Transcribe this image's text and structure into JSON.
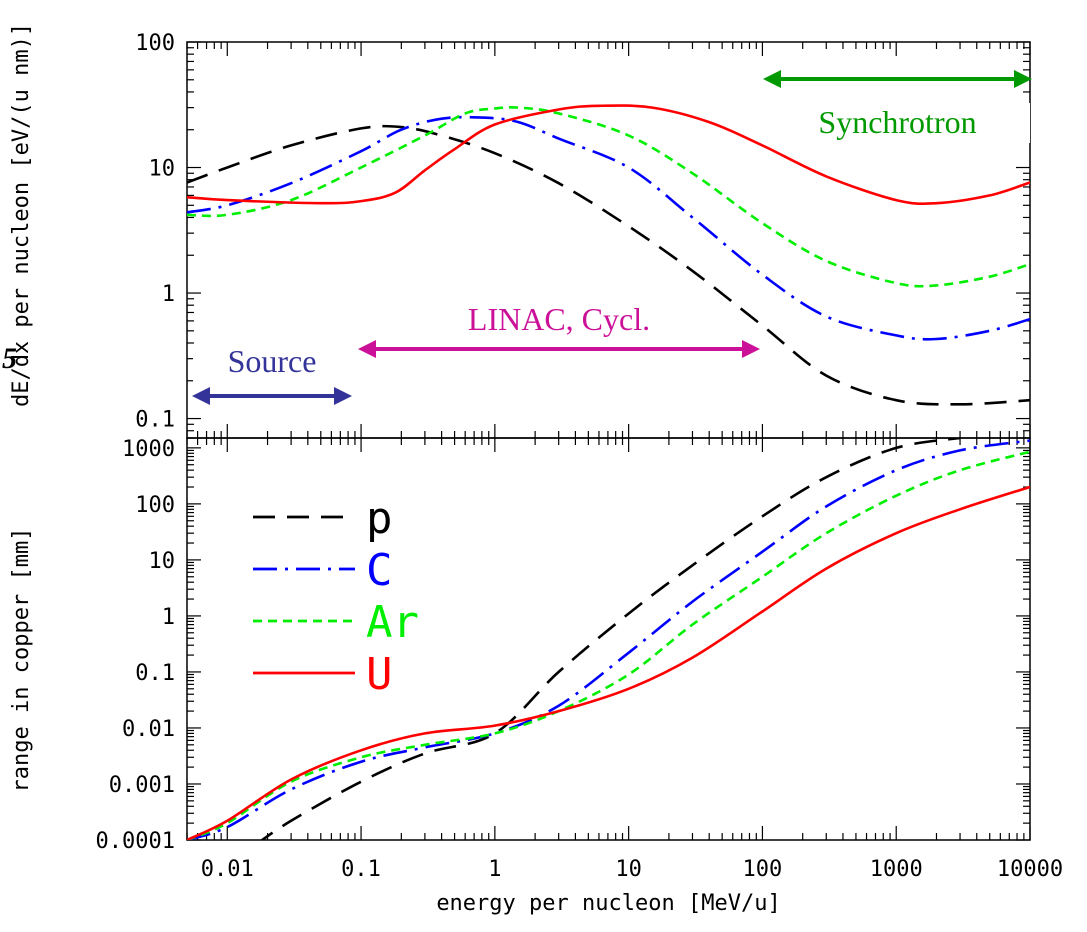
{
  "page": {
    "left_fragment": "5"
  },
  "chart_data": [
    {
      "type": "line",
      "id": "top",
      "xlabel": "",
      "ylabel": "dE/dx per nucleon [eV/(u nm)]",
      "xscale": "log",
      "yscale": "log",
      "xlim": [
        0.005,
        10000
      ],
      "ylim": [
        0.07,
        100
      ],
      "yticks": [
        {
          "v": 0.1,
          "label": "0.1"
        },
        {
          "v": 1,
          "label": "1"
        },
        {
          "v": 10,
          "label": "10"
        },
        {
          "v": 100,
          "label": "100"
        }
      ],
      "series": [
        {
          "name": "p",
          "color": "#000000",
          "dash": "22,12",
          "points": [
            [
              0.005,
              7.6
            ],
            [
              0.01,
              10
            ],
            [
              0.03,
              15
            ],
            [
              0.1,
              20.5
            ],
            [
              0.2,
              21
            ],
            [
              0.4,
              18
            ],
            [
              1,
              13
            ],
            [
              3,
              7.5
            ],
            [
              10,
              3.4
            ],
            [
              30,
              1.5
            ],
            [
              100,
              0.55
            ],
            [
              300,
              0.22
            ],
            [
              1000,
              0.14
            ],
            [
              3000,
              0.13
            ],
            [
              10000,
              0.14
            ]
          ]
        },
        {
          "name": "C",
          "color": "#0000ff",
          "dash": "24,8,3,8",
          "points": [
            [
              0.005,
              4.4
            ],
            [
              0.01,
              5
            ],
            [
              0.03,
              7.5
            ],
            [
              0.1,
              13.5
            ],
            [
              0.2,
              20
            ],
            [
              0.4,
              24.5
            ],
            [
              0.8,
              25
            ],
            [
              1.5,
              23
            ],
            [
              3,
              17
            ],
            [
              10,
              10
            ],
            [
              30,
              4
            ],
            [
              100,
              1.4
            ],
            [
              300,
              0.65
            ],
            [
              1000,
              0.46
            ],
            [
              2000,
              0.43
            ],
            [
              5000,
              0.5
            ],
            [
              10000,
              0.62
            ]
          ]
        },
        {
          "name": "Ar",
          "color": "#00ee00",
          "dash": "9,6",
          "points": [
            [
              0.005,
              4.2
            ],
            [
              0.01,
              4.2
            ],
            [
              0.03,
              5.5
            ],
            [
              0.1,
              10
            ],
            [
              0.3,
              18
            ],
            [
              0.6,
              27
            ],
            [
              1,
              29.5
            ],
            [
              1.5,
              30
            ],
            [
              3,
              27
            ],
            [
              10,
              18
            ],
            [
              30,
              9
            ],
            [
              100,
              3.6
            ],
            [
              300,
              1.8
            ],
            [
              1000,
              1.2
            ],
            [
              2000,
              1.15
            ],
            [
              5000,
              1.35
            ],
            [
              10000,
              1.7
            ]
          ]
        },
        {
          "name": "U",
          "color": "#ff0000",
          "dash": "",
          "points": [
            [
              0.005,
              5.8
            ],
            [
              0.01,
              5.5
            ],
            [
              0.05,
              5.2
            ],
            [
              0.1,
              5.4
            ],
            [
              0.18,
              6.3
            ],
            [
              0.3,
              9.5
            ],
            [
              0.5,
              14
            ],
            [
              1,
              22
            ],
            [
              3,
              29
            ],
            [
              6,
              31
            ],
            [
              15,
              30
            ],
            [
              40,
              23
            ],
            [
              100,
              15
            ],
            [
              300,
              8.5
            ],
            [
              1000,
              5.5
            ],
            [
              2000,
              5.2
            ],
            [
              5000,
              6
            ],
            [
              10000,
              7.6
            ]
          ]
        }
      ],
      "annotations": [
        {
          "name": "source",
          "label": "Source",
          "color": "#333399",
          "x_from": 0.005,
          "x_to": 0.1
        },
        {
          "name": "linac",
          "label": "LINAC, Cycl.",
          "color": "#cc1199",
          "x_from": 0.1,
          "x_to": 100
        },
        {
          "name": "synchrotron",
          "label": "Synchrotron",
          "color": "#009900",
          "x_from": 100,
          "x_to": 10000
        }
      ]
    },
    {
      "type": "line",
      "id": "bottom",
      "xlabel": "energy per nucleon [MeV/u]",
      "ylabel": "range in copper [mm]",
      "xscale": "log",
      "yscale": "log",
      "xlim": [
        0.005,
        10000
      ],
      "ylim": [
        0.0001,
        1500
      ],
      "xticks": [
        {
          "v": 0.01,
          "label": "0.01"
        },
        {
          "v": 0.1,
          "label": "0.1"
        },
        {
          "v": 1,
          "label": "1"
        },
        {
          "v": 10,
          "label": "10"
        },
        {
          "v": 100,
          "label": "100"
        },
        {
          "v": 1000,
          "label": "1000"
        },
        {
          "v": 10000,
          "label": "10000"
        }
      ],
      "yticks": [
        {
          "v": 0.0001,
          "label": "0.0001"
        },
        {
          "v": 0.001,
          "label": "0.001"
        },
        {
          "v": 0.01,
          "label": "0.01"
        },
        {
          "v": 0.1,
          "label": "0.1"
        },
        {
          "v": 1,
          "label": "1"
        },
        {
          "v": 10,
          "label": "10"
        },
        {
          "v": 100,
          "label": "100"
        },
        {
          "v": 1000,
          "label": "1000"
        }
      ],
      "series": [
        {
          "name": "p",
          "color": "#000000",
          "dash": "22,12",
          "points": [
            [
              0.016,
              8e-05
            ],
            [
              0.03,
              0.00022
            ],
            [
              0.1,
              0.0011
            ],
            [
              0.3,
              0.0035
            ],
            [
              1,
              0.008
            ],
            [
              3,
              0.1
            ],
            [
              10,
              1.1
            ],
            [
              30,
              8
            ],
            [
              100,
              60
            ],
            [
              300,
              300
            ],
            [
              1000,
              1000
            ],
            [
              3000,
              1500
            ]
          ]
        },
        {
          "name": "C",
          "color": "#0000ff",
          "dash": "24,8,3,8",
          "points": [
            [
              0.005,
              0.0001
            ],
            [
              0.01,
              0.00017
            ],
            [
              0.03,
              0.0008
            ],
            [
              0.1,
              0.0025
            ],
            [
              0.3,
              0.0045
            ],
            [
              1,
              0.008
            ],
            [
              3,
              0.025
            ],
            [
              10,
              0.22
            ],
            [
              30,
              1.8
            ],
            [
              100,
              14
            ],
            [
              300,
              90
            ],
            [
              1000,
              400
            ],
            [
              3000,
              900
            ],
            [
              10000,
              1350
            ]
          ]
        },
        {
          "name": "Ar",
          "color": "#00ee00",
          "dash": "9,6",
          "points": [
            [
              0.005,
              0.0001
            ],
            [
              0.01,
              0.0002
            ],
            [
              0.03,
              0.0011
            ],
            [
              0.1,
              0.003
            ],
            [
              0.3,
              0.005
            ],
            [
              1,
              0.008
            ],
            [
              3,
              0.02
            ],
            [
              10,
              0.09
            ],
            [
              30,
              0.7
            ],
            [
              100,
              5
            ],
            [
              300,
              30
            ],
            [
              1000,
              140
            ],
            [
              3000,
              400
            ],
            [
              10000,
              850
            ]
          ]
        },
        {
          "name": "U",
          "color": "#ff0000",
          "dash": "",
          "points": [
            [
              0.005,
              0.0001
            ],
            [
              0.01,
              0.00022
            ],
            [
              0.03,
              0.0012
            ],
            [
              0.1,
              0.004
            ],
            [
              0.3,
              0.008
            ],
            [
              1,
              0.011
            ],
            [
              3,
              0.02
            ],
            [
              10,
              0.05
            ],
            [
              30,
              0.18
            ],
            [
              100,
              1.2
            ],
            [
              300,
              7
            ],
            [
              1000,
              30
            ],
            [
              3000,
              80
            ],
            [
              10000,
              200
            ]
          ]
        }
      ],
      "legend": {
        "placement": "left",
        "entries": [
          "p",
          "C",
          "Ar",
          "U"
        ]
      }
    }
  ]
}
